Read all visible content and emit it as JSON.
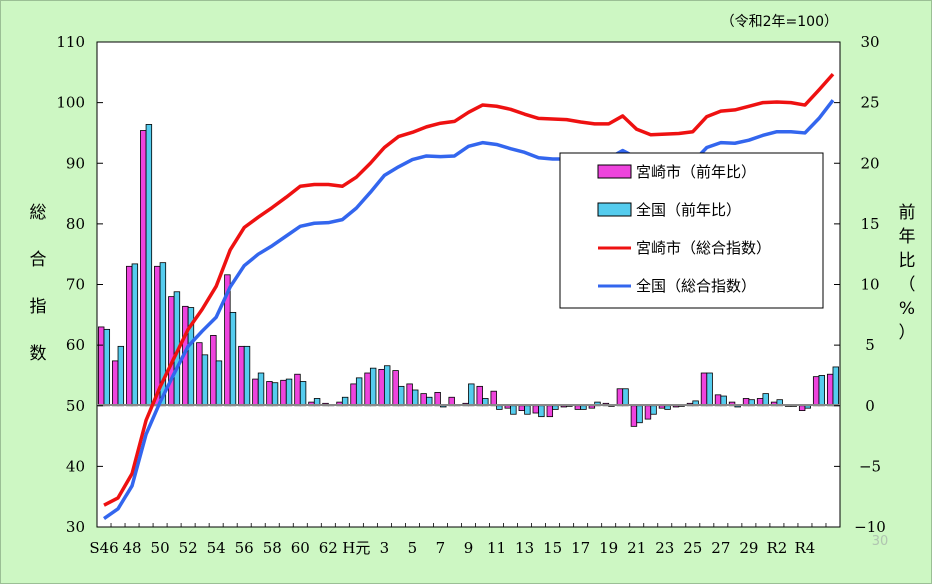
{
  "chart_data": {
    "type": "bar+line",
    "unit_note": "（令和2年=100）",
    "left_axis": {
      "label_chars": [
        "総",
        "合",
        "指",
        "数"
      ],
      "ylim": [
        30,
        110
      ],
      "ticks": [
        "30",
        "40",
        "50",
        "60",
        "70",
        "80",
        "90",
        "100",
        "110"
      ]
    },
    "right_axis": {
      "label_chars": [
        "前",
        "年",
        "比",
        "（",
        "%",
        "）"
      ],
      "ylim": [
        -10,
        30
      ],
      "ticks": [
        "−10",
        "−5",
        "0",
        "5",
        "10",
        "15",
        "20",
        "25",
        "30"
      ]
    },
    "x_tick_labels": [
      "S46",
      "48",
      "50",
      "52",
      "54",
      "56",
      "58",
      "60",
      "62",
      "H元",
      "3",
      "5",
      "7",
      "9",
      "11",
      "13",
      "15",
      "17",
      "19",
      "21",
      "23",
      "25",
      "27",
      "29",
      "R2",
      "R4"
    ],
    "years": [
      "S46",
      "S47",
      "S48",
      "S49",
      "S50",
      "S51",
      "S52",
      "S53",
      "S54",
      "S55",
      "S56",
      "S57",
      "S58",
      "S59",
      "S60",
      "S61",
      "S62",
      "S63",
      "H元",
      "H2",
      "H3",
      "H4",
      "H5",
      "H6",
      "H7",
      "H8",
      "H9",
      "H10",
      "H11",
      "H12",
      "H13",
      "H14",
      "H15",
      "H16",
      "H17",
      "H18",
      "H19",
      "H20",
      "H21",
      "H22",
      "H23",
      "H24",
      "H25",
      "H26",
      "H27",
      "H28",
      "H29",
      "H30",
      "R元",
      "R2",
      "R3",
      "R4",
      "R5"
    ],
    "series": [
      {
        "name": "宮崎市（前年比）",
        "type": "bar",
        "axis": "right",
        "color": "#ee44dd",
        "values": [
          6.5,
          3.7,
          11.5,
          22.7,
          11.5,
          9.0,
          8.2,
          5.2,
          5.8,
          10.8,
          4.9,
          2.2,
          2.0,
          2.1,
          2.6,
          0.3,
          0.2,
          0.3,
          1.8,
          2.7,
          3.0,
          2.9,
          1.8,
          1.0,
          1.1,
          0.7,
          0.2,
          1.6,
          1.2,
          -0.2,
          -0.4,
          -0.6,
          -0.9,
          -0.1,
          -0.3,
          -0.2,
          0.2,
          1.4,
          -1.7,
          -1.1,
          -0.2,
          -0.1,
          0.2,
          2.7,
          0.9,
          0.3,
          0.6,
          0.6,
          0.3,
          0.0,
          -0.4,
          2.4,
          2.6
        ]
      },
      {
        "name": "全国（前年比）",
        "type": "bar",
        "axis": "right",
        "color": "#55ccee",
        "values": [
          6.3,
          4.9,
          11.7,
          23.2,
          11.8,
          9.4,
          8.1,
          4.2,
          3.7,
          7.7,
          4.9,
          2.7,
          1.9,
          2.2,
          2.0,
          0.6,
          0.1,
          0.7,
          2.3,
          3.1,
          3.3,
          1.6,
          1.3,
          0.7,
          -0.1,
          0.1,
          1.8,
          0.6,
          -0.3,
          -0.7,
          -0.7,
          -0.9,
          -0.3,
          0.0,
          -0.3,
          0.3,
          0.0,
          1.4,
          -1.4,
          -0.7,
          -0.3,
          0.0,
          0.4,
          2.7,
          0.8,
          -0.1,
          0.5,
          1.0,
          0.5,
          0.0,
          -0.2,
          2.5,
          3.2
        ]
      },
      {
        "name": "宮崎市（総合指数）",
        "type": "line",
        "axis": "left",
        "color": "#ee1111",
        "values": [
          33.6,
          34.8,
          38.8,
          47.6,
          53.1,
          57.9,
          62.6,
          65.9,
          69.7,
          75.7,
          79.4,
          81.1,
          82.7,
          84.4,
          86.2,
          86.5,
          86.5,
          86.2,
          87.7,
          90.0,
          92.6,
          94.4,
          95.1,
          96.0,
          96.6,
          96.9,
          98.4,
          99.6,
          99.4,
          98.9,
          98.1,
          97.4,
          97.3,
          97.2,
          96.8,
          96.5,
          96.5,
          97.8,
          95.6,
          94.7,
          94.8,
          94.9,
          95.2,
          97.7,
          98.6,
          98.8,
          99.4,
          100.0,
          100.1,
          100.0,
          99.6,
          102.1,
          104.7
        ]
      },
      {
        "name": "全国（総合指数）",
        "type": "line",
        "axis": "left",
        "color": "#3366ee",
        "values": [
          31.4,
          33.0,
          36.8,
          45.3,
          50.6,
          55.3,
          59.8,
          62.3,
          64.6,
          69.6,
          73.1,
          75.0,
          76.4,
          78.0,
          79.6,
          80.1,
          80.2,
          80.7,
          82.6,
          85.2,
          88.0,
          89.4,
          90.6,
          91.2,
          91.1,
          91.2,
          92.8,
          93.4,
          93.1,
          92.4,
          91.8,
          90.9,
          90.7,
          90.7,
          90.5,
          90.8,
          90.8,
          92.1,
          90.9,
          90.2,
          89.9,
          89.9,
          90.2,
          92.6,
          93.4,
          93.3,
          93.8,
          94.6,
          95.2,
          95.2,
          95.0,
          97.4,
          100.4
        ]
      }
    ],
    "legend_position": "right-middle",
    "grid": false
  },
  "page_label": "30"
}
